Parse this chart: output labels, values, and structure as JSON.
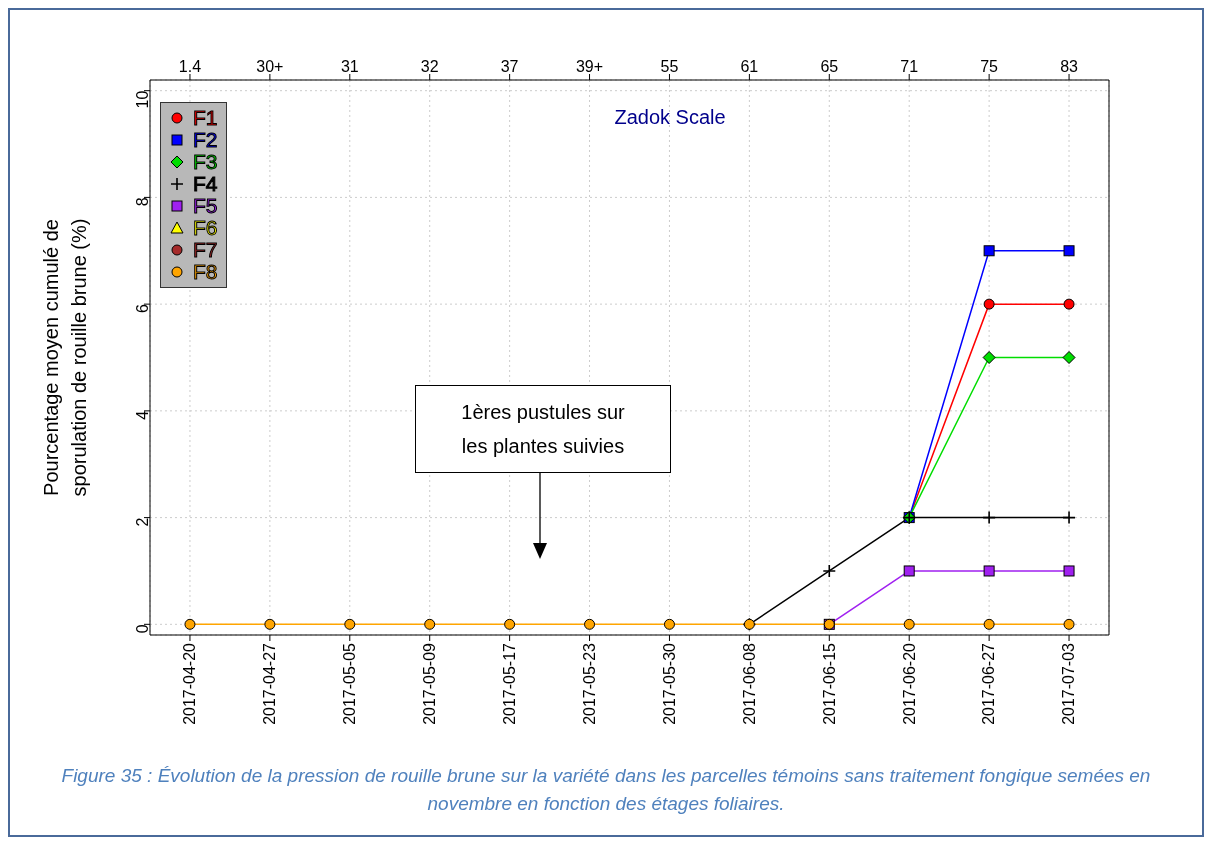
{
  "chart_data": {
    "type": "line",
    "ylabel": "Pourcentage moyen cumulé de sporulation de rouille brune (%)",
    "x2label": "Zadok Scale",
    "categories": [
      "2017-04-20",
      "2017-04-27",
      "2017-05-05",
      "2017-05-09",
      "2017-05-17",
      "2017-05-23",
      "2017-05-30",
      "2017-06-08",
      "2017-06-15",
      "2017-06-20",
      "2017-06-27",
      "2017-07-03"
    ],
    "series": [
      {
        "name": "F1",
        "color": "#ff0000",
        "marker": "circle",
        "values": [
          null,
          null,
          null,
          null,
          null,
          null,
          null,
          null,
          null,
          2,
          6,
          6
        ]
      },
      {
        "name": "F2",
        "color": "#0000ff",
        "marker": "square",
        "values": [
          null,
          null,
          null,
          null,
          null,
          null,
          null,
          null,
          null,
          2,
          7,
          7
        ]
      },
      {
        "name": "F3",
        "color": "#00dd00",
        "marker": "diamond",
        "values": [
          null,
          null,
          null,
          null,
          null,
          null,
          null,
          null,
          null,
          2,
          5,
          5
        ]
      },
      {
        "name": "F4",
        "color": "#000000",
        "marker": "cross",
        "values": [
          null,
          null,
          null,
          null,
          null,
          null,
          null,
          0,
          1,
          2,
          2,
          2
        ]
      },
      {
        "name": "F5",
        "color": "#a020f0",
        "marker": "square",
        "values": [
          null,
          null,
          null,
          null,
          null,
          null,
          null,
          null,
          0,
          1,
          1,
          1
        ]
      },
      {
        "name": "F6",
        "color": "#ffff00",
        "marker": "triangle",
        "values": [
          null,
          null,
          null,
          null,
          null,
          null,
          null,
          null,
          null,
          null,
          null,
          null
        ]
      },
      {
        "name": "F7",
        "color": "#a52a2a",
        "marker": "circle",
        "values": [
          null,
          null,
          null,
          null,
          null,
          null,
          null,
          null,
          null,
          null,
          null,
          null
        ]
      },
      {
        "name": "F8",
        "color": "#ffa500",
        "marker": "circle",
        "values": [
          0,
          0,
          0,
          0,
          0,
          0,
          0,
          0,
          0,
          0,
          0,
          0
        ]
      }
    ],
    "ylim": [
      -0.2,
      10.2
    ],
    "yticks": [
      0,
      2,
      4,
      6,
      8,
      10
    ],
    "grid": true,
    "legend": "top left",
    "line_style": "solid",
    "annotations": [
      "1ères pustules sur\nles plantes suivies",
      "1.4",
      "30+",
      "31",
      "32",
      "37",
      "39+",
      "55",
      "61",
      "65",
      "71",
      "75",
      "83",
      "Figure 35 : Évolution de la pression de rouille brune sur la variété dans les parcelles témoins sans traitement fongique semées en novembre en fonction des étages foliaires."
    ]
  }
}
